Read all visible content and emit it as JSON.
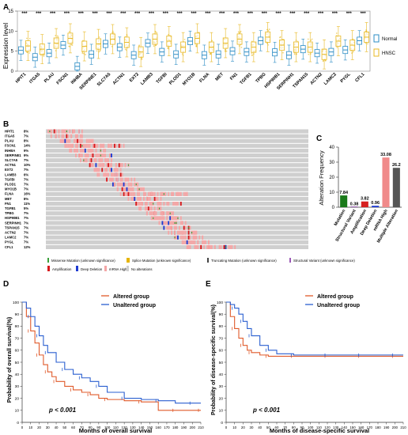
{
  "colors": {
    "normal": "#2b8cc4",
    "hnsc": "#e8b923",
    "amplification": "#d7191c",
    "deep_deletion": "#1f3bd1",
    "mrna_high": "#f4a6a6",
    "no_alt": "#cfcfcf",
    "missense": "#3aa03a",
    "splice": "#e6b400",
    "truncating": "#444444",
    "structural": "#9b59b6",
    "bar_mutation": "#1a7a1a",
    "bar_structural": "#7a2a9a",
    "bar_amplification": "#d62020",
    "bar_deep_deletion": "#1f3bd1",
    "bar_mrna_high": "#f08a8a",
    "bar_multiple": "#555555",
    "altered": "#e05a2a",
    "unaltered": "#2a5fd0"
  },
  "panels": {
    "a": "A",
    "b": "B",
    "c": "C",
    "d": "D",
    "e": "E"
  },
  "panel_b": {
    "genes": [
      "HPIT1",
      "ITGA5",
      "PLAU",
      "FSCN1",
      "INHBA",
      "SERPINE1",
      "SLC7A5",
      "ACTN1",
      "EXT2",
      "LAMB3",
      "TGFBI",
      "PLOD1",
      "MYO1B",
      "FLNA",
      "MET",
      "FN1",
      "TGFB1",
      "TPBG",
      "HSP90B1",
      "SERPINH1",
      "TSPAN15",
      "ACTN2",
      "LAMC2",
      "PYGL",
      "CFL1"
    ],
    "percents": [
      "8%",
      "7%",
      "8%",
      "14%",
      "9%",
      "9%",
      "7%",
      "10%",
      "7%",
      "6%",
      "7%",
      "7%",
      "7%",
      "16%",
      "8%",
      "11%",
      "5%",
      "7%",
      "7%",
      "7%",
      "7%",
      "7%",
      "7%",
      "7%",
      "12%"
    ],
    "legend": {
      "missense": "Missense Mutation (unknown significance)",
      "splice": "Splice Mutation (unknown significance)",
      "truncating": "Truncating Mutation (unknown significance)",
      "structural": "Structural Variant (unknown significance)",
      "amplification": "Amplification",
      "deep_deletion": "Deep Deletion",
      "mrna_high": "mRNA High",
      "no_alt": "No alterations"
    }
  },
  "chart_data": [
    {
      "panel": "A",
      "type": "box",
      "ylabel": "Expression level",
      "ylim": [
        0,
        15
      ],
      "yticks": [
        0,
        5,
        10,
        15
      ],
      "significance": "***",
      "legend": [
        "Normal",
        "HNSC"
      ],
      "categories": [
        "HPIT1",
        "ITGA5",
        "PLAU",
        "FSCN1",
        "INHBA",
        "SERPINE1",
        "SLC7A5",
        "ACTN1",
        "EXT2",
        "LAMB3",
        "TGFBI",
        "PLOD1",
        "MYO1B",
        "FLNA",
        "MET",
        "FN1",
        "TGFB1",
        "TPBG",
        "HSP90B1",
        "SERPINH1",
        "TSPAN15",
        "ACTN2",
        "LAMC2",
        "PYGL",
        "CFL1"
      ],
      "series": [
        {
          "name": "Normal",
          "medians": [
            5.2,
            3.5,
            4.5,
            6.5,
            1.2,
            4.2,
            6.8,
            6.0,
            4.0,
            7.0,
            4.8,
            4.2,
            7.5,
            4.0,
            4.2,
            5.0,
            4.8,
            7.6,
            4.7,
            4.0,
            5.5,
            4.5,
            4.8,
            5.3,
            7.6
          ]
        },
        {
          "name": "HNSC",
          "medians": [
            6.3,
            5.5,
            7.0,
            8.2,
            6.2,
            6.8,
            8.0,
            7.2,
            4.8,
            8.0,
            7.5,
            6.0,
            8.2,
            6.0,
            7.0,
            8.0,
            6.0,
            8.5,
            6.5,
            6.0,
            6.0,
            4.2,
            7.5,
            6.5,
            8.5
          ]
        }
      ]
    },
    {
      "panel": "C",
      "type": "bar",
      "ylabel": "Alteration Frequency",
      "ylim": [
        0,
        40
      ],
      "yticks": [
        0,
        10,
        20,
        30,
        40
      ],
      "categories": [
        "Mutation",
        "Structural Variant",
        "Amplification",
        "Deep Deletion",
        "mRNA High",
        "Multiple Alteration"
      ],
      "values": [
        7.84,
        0.38,
        3.82,
        0.96,
        33.08,
        26.2
      ],
      "value_labels": [
        "7.84",
        "0.38",
        "3.82",
        "0.96",
        "33.08",
        "26.2"
      ]
    },
    {
      "panel": "D",
      "type": "line",
      "ylabel": "Probability of overall survival(%)",
      "xlabel": "Months of overall survival",
      "xlim": [
        0,
        210
      ],
      "ylim": [
        0,
        100
      ],
      "xticks": [
        0,
        10,
        20,
        30,
        40,
        50,
        60,
        70,
        80,
        90,
        100,
        110,
        120,
        130,
        140,
        150,
        160,
        170,
        180,
        190,
        200,
        210
      ],
      "yticks": [
        0,
        10,
        20,
        30,
        40,
        50,
        60,
        70,
        80,
        90,
        100
      ],
      "annotation": "p < 0.001",
      "series": [
        {
          "name": "Altered group",
          "x": [
            0,
            5,
            10,
            15,
            20,
            25,
            30,
            35,
            40,
            50,
            60,
            70,
            80,
            90,
            100,
            120,
            140,
            160,
            180,
            200,
            210
          ],
          "y": [
            100,
            88,
            76,
            66,
            56,
            48,
            42,
            38,
            34,
            30,
            27,
            25,
            23,
            20,
            19,
            18,
            17,
            10,
            10,
            10,
            10
          ]
        },
        {
          "name": "Unaltered group",
          "x": [
            0,
            5,
            10,
            15,
            20,
            25,
            30,
            40,
            50,
            60,
            70,
            80,
            90,
            100,
            120,
            140,
            160,
            180,
            200,
            210
          ],
          "y": [
            100,
            95,
            88,
            80,
            72,
            64,
            58,
            50,
            44,
            40,
            37,
            34,
            30,
            25,
            20,
            19,
            18,
            16,
            16,
            16
          ]
        }
      ]
    },
    {
      "panel": "E",
      "type": "line",
      "ylabel": "Probability of disease-specific survival(%)",
      "xlabel": "Months of disease-specific survival",
      "xlim": [
        0,
        210
      ],
      "ylim": [
        0,
        100
      ],
      "xticks": [
        0,
        10,
        20,
        30,
        40,
        50,
        60,
        70,
        80,
        90,
        100,
        110,
        120,
        130,
        140,
        150,
        160,
        170,
        180,
        190,
        200,
        210
      ],
      "yticks": [
        0,
        10,
        20,
        30,
        40,
        50,
        60,
        70,
        80,
        90,
        100
      ],
      "annotation": "p < 0.001",
      "series": [
        {
          "name": "Altered group",
          "x": [
            0,
            5,
            10,
            15,
            20,
            25,
            30,
            40,
            50,
            60,
            80,
            100,
            120,
            140,
            160,
            180,
            200,
            210
          ],
          "y": [
            100,
            88,
            78,
            70,
            64,
            60,
            58,
            56,
            55,
            55,
            55,
            55,
            55,
            55,
            55,
            55,
            55,
            55
          ]
        },
        {
          "name": "Unaltered group",
          "x": [
            0,
            5,
            10,
            15,
            20,
            25,
            30,
            40,
            50,
            60,
            80,
            100,
            120,
            140,
            160,
            180,
            200,
            210
          ],
          "y": [
            100,
            98,
            95,
            90,
            84,
            78,
            72,
            64,
            60,
            57,
            56,
            56,
            56,
            56,
            56,
            56,
            56,
            56
          ]
        }
      ]
    }
  ]
}
